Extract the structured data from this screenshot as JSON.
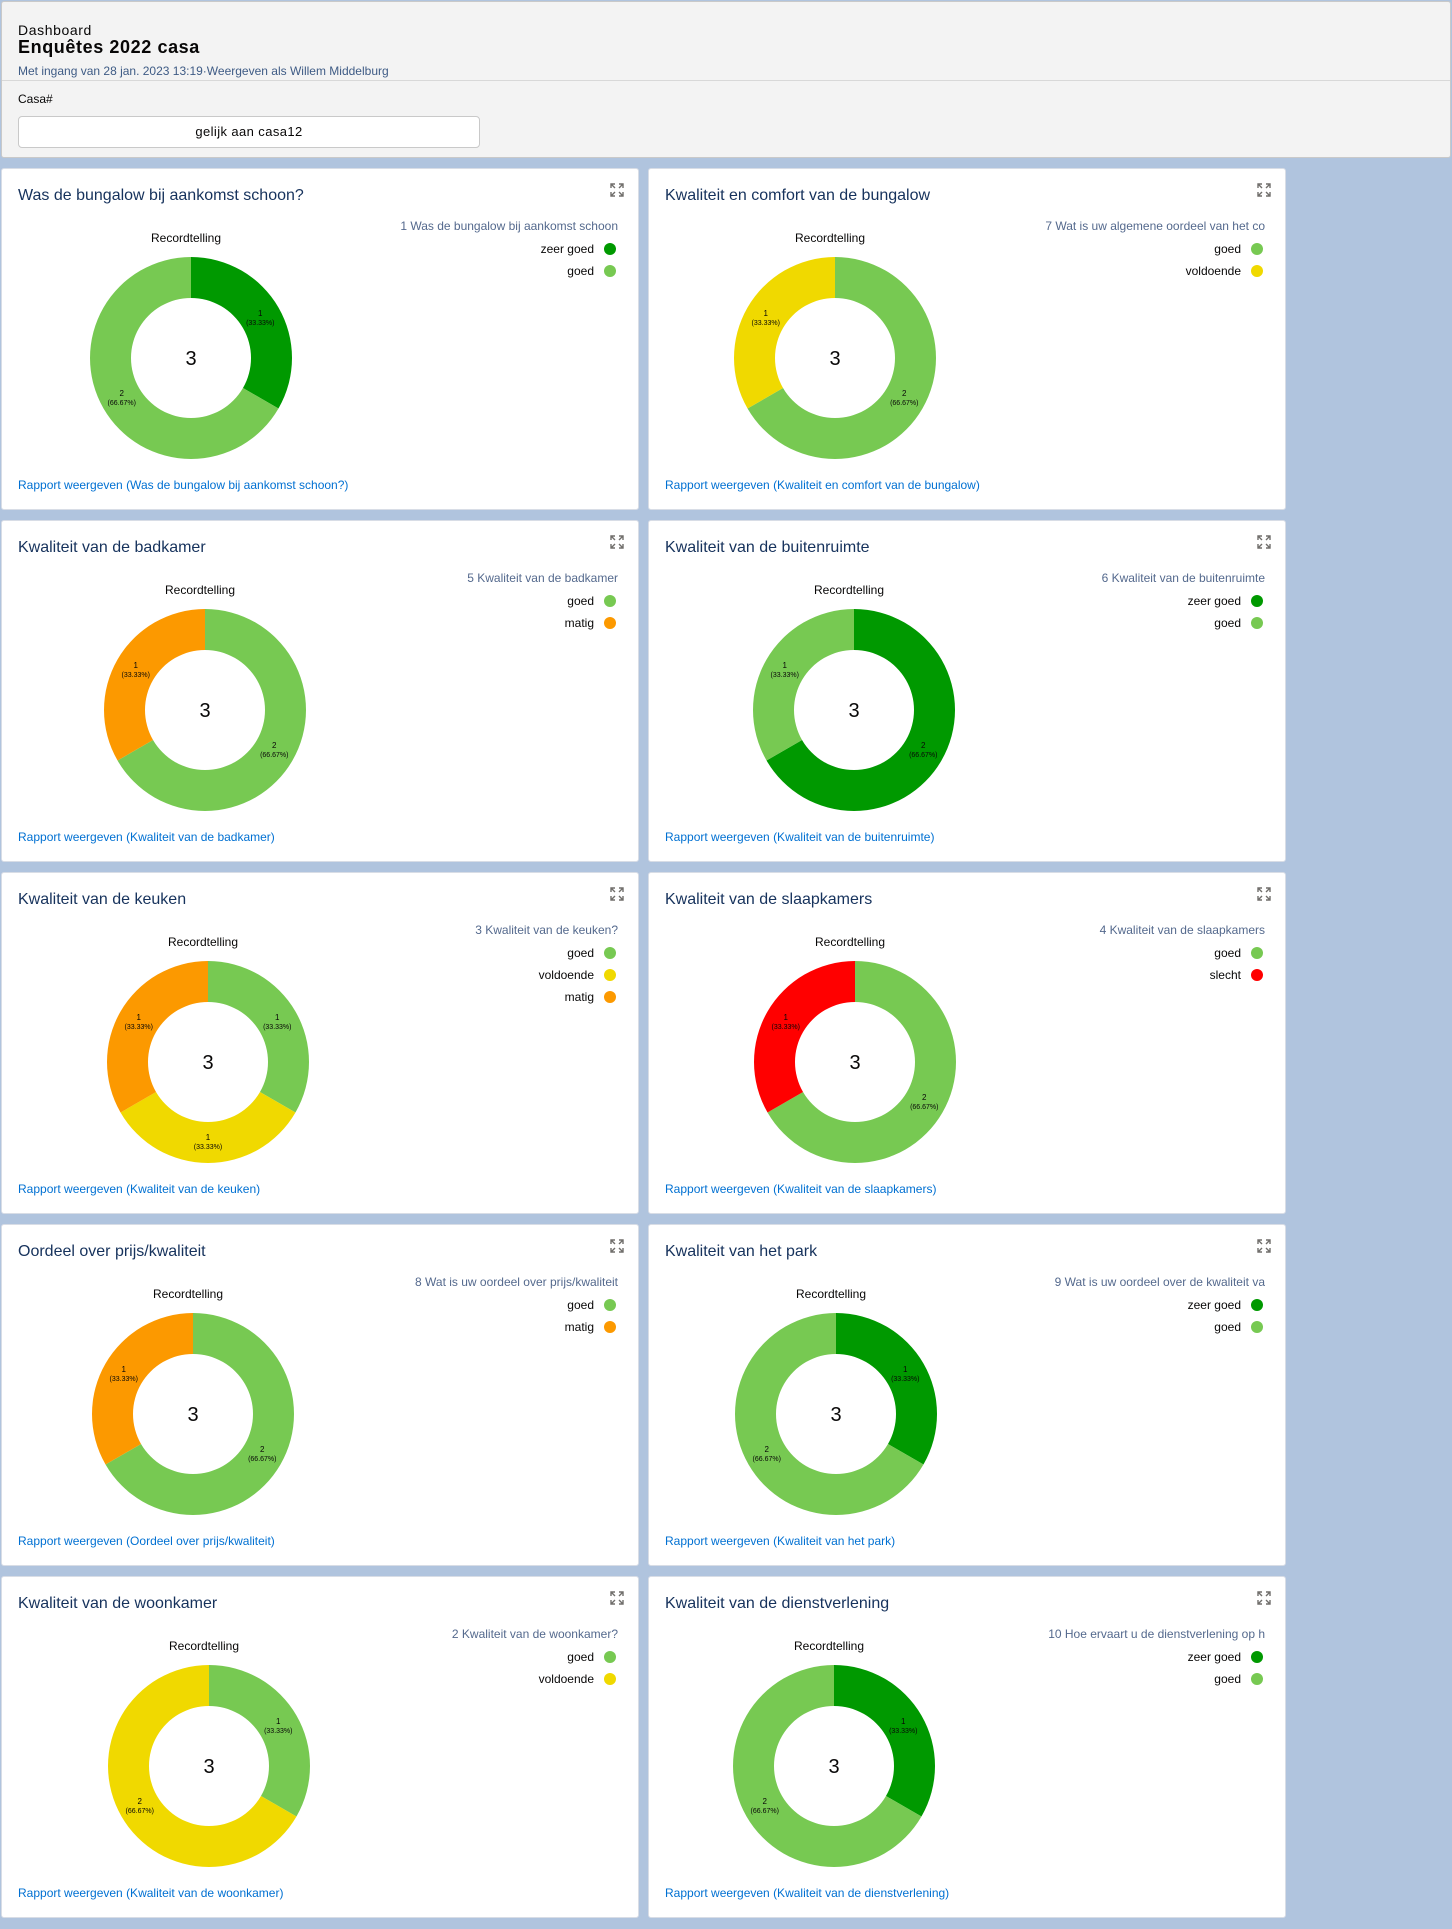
{
  "header": {
    "label": "Dashboard",
    "title": "Enquêtes 2022 casa",
    "subtitle": "Met ingang van 28 jan. 2023 13:19·Weergeven als Willem Middelburg",
    "filter_label": "Casa#",
    "filter_value": "gelijk aan casa12"
  },
  "colors": {
    "zeer goed": "#009900",
    "goed": "#77c952",
    "voldoende": "#f0d900",
    "matig": "#fc9900",
    "slecht": "#ff0000"
  },
  "chart_data": [
    {
      "type": "donut",
      "title": "Was de bungalow bij aankomst schoon?",
      "chart_label": "Recordtelling",
      "legend_title": "1 Was de bungalow bij aankomst schoon",
      "center_total": "3",
      "slices": [
        {
          "label": "zeer goed",
          "value": 1,
          "text": "1",
          "pct": "(33.33%)"
        },
        {
          "label": "goed",
          "value": 2,
          "text": "2",
          "pct": "(66.67%)"
        }
      ],
      "link": "Rapport weergeven (Was de bungalow bij aankomst schoon?)"
    },
    {
      "type": "donut",
      "title": "Kwaliteit en comfort van de bungalow",
      "chart_label": "Recordtelling",
      "legend_title": "7 Wat is uw  algemene oordeel van het co",
      "center_total": "3",
      "slices": [
        {
          "label": "goed",
          "value": 2,
          "text": "2",
          "pct": "(66.67%)"
        },
        {
          "label": "voldoende",
          "value": 1,
          "text": "1",
          "pct": "(33.33%)"
        }
      ],
      "link": "Rapport weergeven (Kwaliteit en comfort van de bungalow)"
    },
    {
      "type": "donut",
      "title": "Kwaliteit van de badkamer",
      "chart_label": "Recordtelling",
      "legend_title": "5 Kwaliteit van de badkamer",
      "center_total": "3",
      "slices": [
        {
          "label": "goed",
          "value": 2,
          "text": "2",
          "pct": "(66.67%)"
        },
        {
          "label": "matig",
          "value": 1,
          "text": "1",
          "pct": "(33.33%)"
        }
      ],
      "link": "Rapport weergeven (Kwaliteit van de badkamer)"
    },
    {
      "type": "donut",
      "title": "Kwaliteit van de buitenruimte",
      "chart_label": "Recordtelling",
      "legend_title": "6 Kwaliteit van de buitenruimte",
      "center_total": "3",
      "slices": [
        {
          "label": "zeer goed",
          "value": 2,
          "text": "2",
          "pct": "(66.67%)"
        },
        {
          "label": "goed",
          "value": 1,
          "text": "1",
          "pct": "(33.33%)"
        }
      ],
      "link": "Rapport weergeven (Kwaliteit van de buitenruimte)"
    },
    {
      "type": "donut",
      "title": "Kwaliteit van de keuken",
      "chart_label": "Recordtelling",
      "legend_title": "3 Kwaliteit van de keuken?",
      "center_total": "3",
      "slices": [
        {
          "label": "goed",
          "value": 1,
          "text": "1",
          "pct": "(33.33%)"
        },
        {
          "label": "voldoende",
          "value": 1,
          "text": "1",
          "pct": "(33.33%)"
        },
        {
          "label": "matig",
          "value": 1,
          "text": "1",
          "pct": "(33.33%)"
        }
      ],
      "link": "Rapport weergeven (Kwaliteit van de keuken)"
    },
    {
      "type": "donut",
      "title": "Kwaliteit van de slaapkamers",
      "chart_label": "Recordtelling",
      "legend_title": "4 Kwaliteit van de slaapkamers",
      "center_total": "3",
      "slices": [
        {
          "label": "goed",
          "value": 2,
          "text": "2",
          "pct": "(66.67%)"
        },
        {
          "label": "slecht",
          "value": 1,
          "text": "1",
          "pct": "(33.33%)"
        }
      ],
      "link": "Rapport weergeven (Kwaliteit van de slaapkamers)"
    },
    {
      "type": "donut",
      "title": "Oordeel over prijs/kwaliteit",
      "chart_label": "Recordtelling",
      "legend_title": "8 Wat is uw oordeel over prijs/kwaliteit",
      "center_total": "3",
      "slices": [
        {
          "label": "goed",
          "value": 2,
          "text": "2",
          "pct": "(66.67%)"
        },
        {
          "label": "matig",
          "value": 1,
          "text": "1",
          "pct": "(33.33%)"
        }
      ],
      "link": "Rapport weergeven (Oordeel over prijs/kwaliteit)"
    },
    {
      "type": "donut",
      "title": "Kwaliteit van het park",
      "chart_label": "Recordtelling",
      "legend_title": "9 Wat is uw oordeel over de kwaliteit va",
      "center_total": "3",
      "slices": [
        {
          "label": "zeer goed",
          "value": 1,
          "text": "1",
          "pct": "(33.33%)"
        },
        {
          "label": "goed",
          "value": 2,
          "text": "2",
          "pct": "(66.67%)"
        }
      ],
      "link": "Rapport weergeven (Kwaliteit van het park)"
    },
    {
      "type": "donut",
      "title": "Kwaliteit van de woonkamer",
      "chart_label": "Recordtelling",
      "legend_title": "2 Kwaliteit van de woonkamer?",
      "center_total": "3",
      "slices": [
        {
          "label": "goed",
          "value": 1,
          "text": "1",
          "pct": "(33.33%)"
        },
        {
          "label": "voldoende",
          "value": 2,
          "text": "2",
          "pct": "(66.67%)"
        }
      ],
      "link": "Rapport weergeven (Kwaliteit van de woonkamer)"
    },
    {
      "type": "donut",
      "title": "Kwaliteit van de dienstverlening",
      "chart_label": "Recordtelling",
      "legend_title": "10 Hoe ervaart u de dienstverlening op h",
      "center_total": "3",
      "slices": [
        {
          "label": "zeer goed",
          "value": 1,
          "text": "1",
          "pct": "(33.33%)"
        },
        {
          "label": "goed",
          "value": 2,
          "text": "2",
          "pct": "(66.67%)"
        }
      ],
      "link": "Rapport weergeven (Kwaliteit van de dienstverlening)"
    }
  ]
}
